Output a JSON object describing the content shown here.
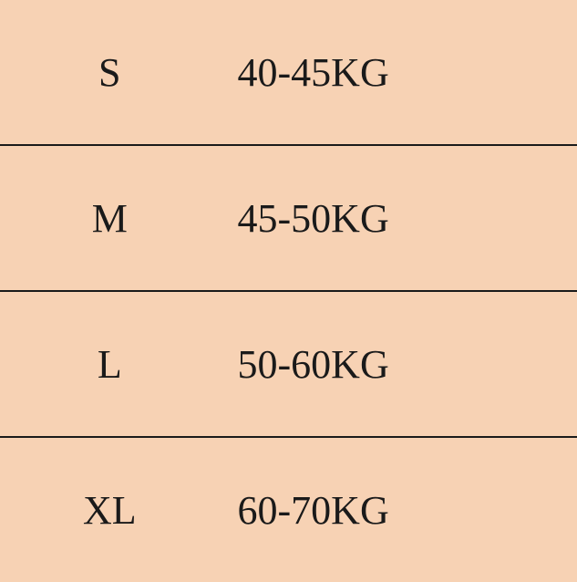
{
  "table": {
    "type": "table",
    "background_color": "#f7d2b4",
    "border_color": "#1a1a1a",
    "border_width": 2,
    "text_color": "#1a1a1a",
    "font_size": 44,
    "font_family": "SimSun",
    "columns": [
      "size",
      "weight"
    ],
    "column_widths": [
      "38%",
      "62%"
    ],
    "column_alignment": [
      "center",
      "left"
    ],
    "rows": [
      {
        "size": "S",
        "weight": "40-45KG"
      },
      {
        "size": "M",
        "weight": "45-50KG"
      },
      {
        "size": "L",
        "weight": "50-60KG"
      },
      {
        "size": "XL",
        "weight": "60-70KG"
      }
    ]
  }
}
